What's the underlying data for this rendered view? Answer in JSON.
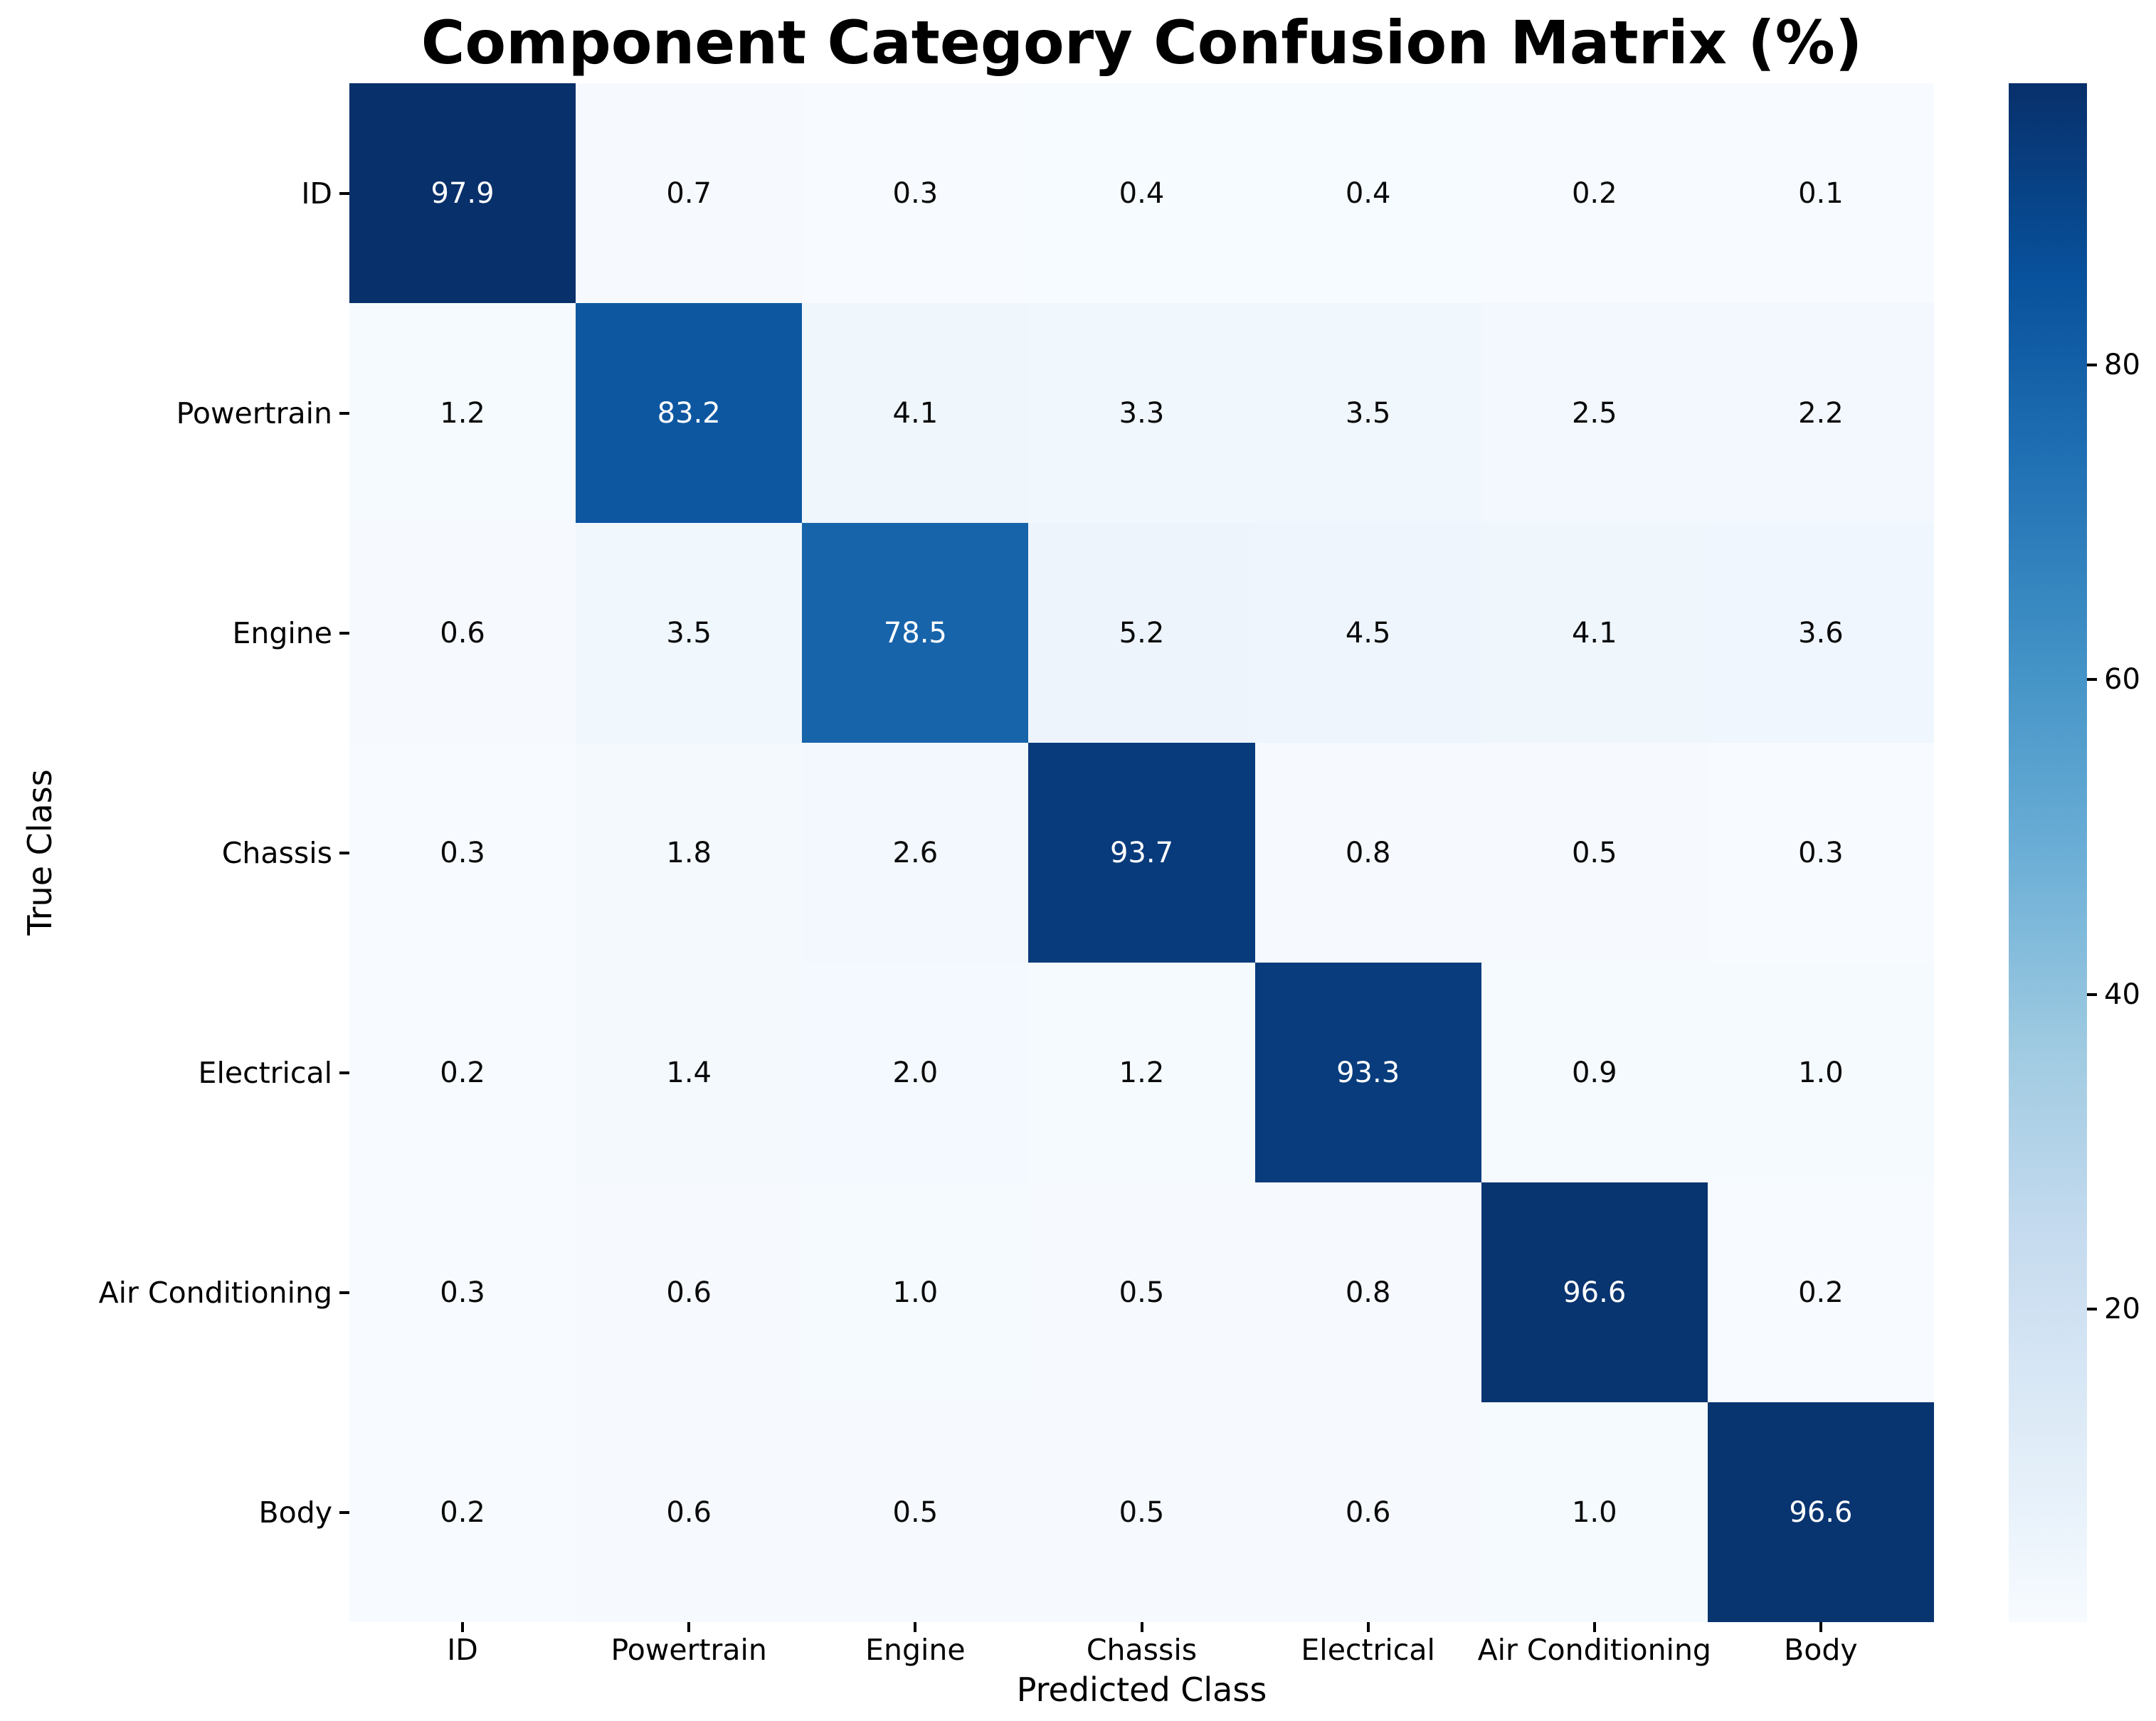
{
  "chart_data": {
    "type": "heatmap",
    "title": "Component Category Confusion Matrix (%)",
    "xlabel": "Predicted Class",
    "ylabel": "True Class",
    "categories": [
      "ID",
      "Powertrain",
      "Engine",
      "Chassis",
      "Electrical",
      "Air Conditioning",
      "Body"
    ],
    "matrix": [
      [
        97.9,
        0.7,
        0.3,
        0.4,
        0.4,
        0.2,
        0.1
      ],
      [
        1.2,
        83.2,
        4.1,
        3.3,
        3.5,
        2.5,
        2.2
      ],
      [
        0.6,
        3.5,
        78.5,
        5.2,
        4.5,
        4.1,
        3.6
      ],
      [
        0.3,
        1.8,
        2.6,
        93.7,
        0.8,
        0.5,
        0.3
      ],
      [
        0.2,
        1.4,
        2.0,
        1.2,
        93.3,
        0.9,
        1.0
      ],
      [
        0.3,
        0.6,
        1.0,
        0.5,
        0.8,
        96.6,
        0.2
      ],
      [
        0.2,
        0.6,
        0.5,
        0.5,
        0.6,
        1.0,
        96.6
      ]
    ],
    "value_decimals": 1,
    "vmin": 0.1,
    "vmax": 97.9,
    "colormap": "Blues",
    "colormap_stops": [
      {
        "pos": 0.0,
        "color": "#f7fbff"
      },
      {
        "pos": 0.125,
        "color": "#deebf7"
      },
      {
        "pos": 0.25,
        "color": "#c6dbef"
      },
      {
        "pos": 0.375,
        "color": "#9ecae1"
      },
      {
        "pos": 0.5,
        "color": "#6baed6"
      },
      {
        "pos": 0.625,
        "color": "#4292c6"
      },
      {
        "pos": 0.75,
        "color": "#2171b5"
      },
      {
        "pos": 0.875,
        "color": "#08519c"
      },
      {
        "pos": 1.0,
        "color": "#08306b"
      }
    ],
    "colorbar_ticks": [
      80,
      60,
      40,
      20
    ],
    "colorbar_position": "right",
    "grid": false,
    "annot_color_dark": "#0a0a0a",
    "annot_color_light": "#ffffff"
  }
}
